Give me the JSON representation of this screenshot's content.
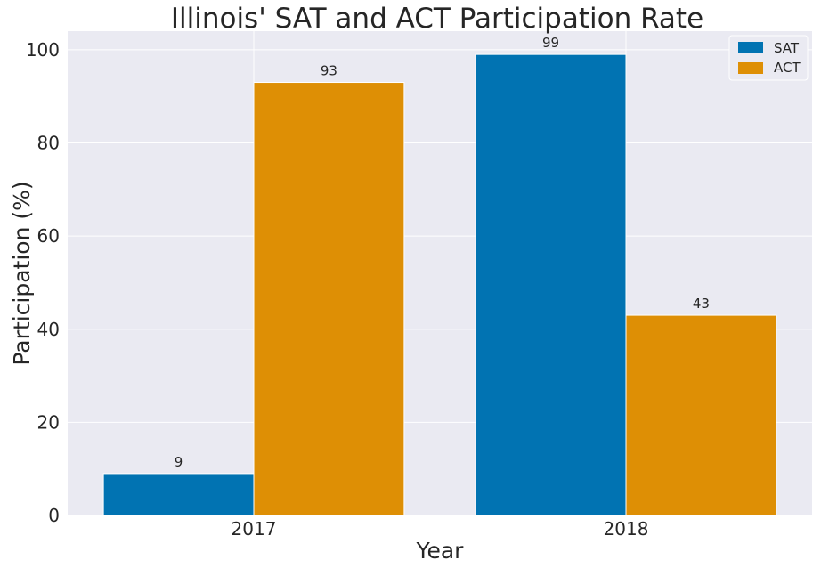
{
  "chart_data": {
    "type": "bar",
    "title": "Illinois' SAT and ACT Participation Rate",
    "xlabel": "Year",
    "ylabel": "Participation (%)",
    "categories": [
      "2017",
      "2018"
    ],
    "series": [
      {
        "name": "SAT",
        "values": [
          9,
          99
        ],
        "color": "#0173b2"
      },
      {
        "name": "ACT",
        "values": [
          93,
          43
        ],
        "color": "#de8f05"
      }
    ],
    "ylim": [
      0,
      104
    ],
    "yticks": [
      0,
      20,
      40,
      60,
      80,
      100
    ],
    "grid": true,
    "legend_position": "top-right",
    "background": "#eaeaf2"
  }
}
